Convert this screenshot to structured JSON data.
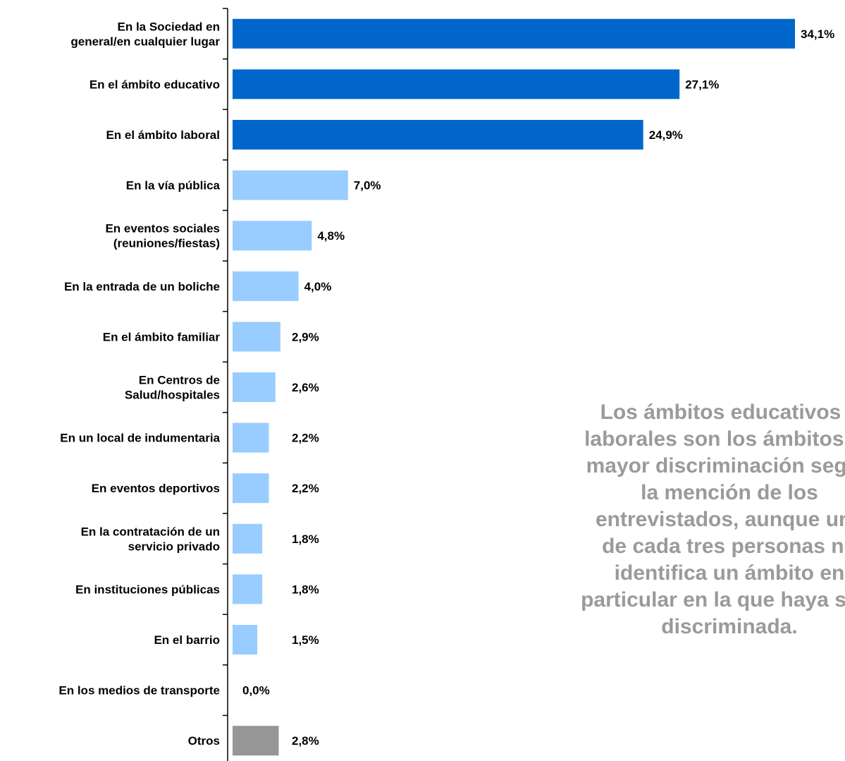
{
  "chart_data": {
    "type": "bar",
    "orientation": "horizontal",
    "categories": [
      [
        "En la Sociedad en",
        "general/en cualquier lugar"
      ],
      [
        "En el ámbito educativo"
      ],
      [
        "En el ámbito laboral"
      ],
      [
        "En la vía pública"
      ],
      [
        "En eventos sociales",
        "(reuniones/fiestas)"
      ],
      [
        "En la entrada de un boliche"
      ],
      [
        "En el ámbito familiar"
      ],
      [
        "En Centros de",
        "Salud/hospitales"
      ],
      [
        "En un local de indumentaria"
      ],
      [
        "En eventos deportivos"
      ],
      [
        "En la contratación de un",
        "servicio privado"
      ],
      [
        "En instituciones públicas"
      ],
      [
        "En el barrio"
      ],
      [
        "En los medios de transporte"
      ],
      [
        "Otros"
      ]
    ],
    "values": [
      34.1,
      27.1,
      24.9,
      7.0,
      4.8,
      4.0,
      2.9,
      2.6,
      2.2,
      2.2,
      1.8,
      1.8,
      1.5,
      0.0,
      2.8
    ],
    "value_labels": [
      "34,1%",
      "27,1%",
      "24,9%",
      "7,0%",
      "4,8%",
      "4,0%",
      "2,9%",
      "2,6%",
      "2,2%",
      "2,2%",
      "1,8%",
      "1,8%",
      "1,5%",
      "0,0%",
      "2,8%"
    ],
    "bar_colors": [
      "#0066cc",
      "#0066cc",
      "#0066cc",
      "#99ccff",
      "#99ccff",
      "#99ccff",
      "#99ccff",
      "#99ccff",
      "#99ccff",
      "#99ccff",
      "#99ccff",
      "#99ccff",
      "#99ccff",
      "#99ccff",
      "#969696"
    ],
    "xlim": [
      0,
      34.1
    ],
    "grid": false,
    "legend": "none",
    "title": "",
    "xlabel": "",
    "ylabel": ""
  },
  "annotation": {
    "lines": [
      "Los ámbitos educativos y",
      "laborales son los ámbitos de",
      "mayor discriminación según",
      "la mención de los",
      "entrevistados, aunque una",
      "de cada tres personas no",
      "identifica un ámbito en",
      "particular en la que haya sido",
      "discriminada."
    ],
    "color": "#9a9a9a"
  }
}
